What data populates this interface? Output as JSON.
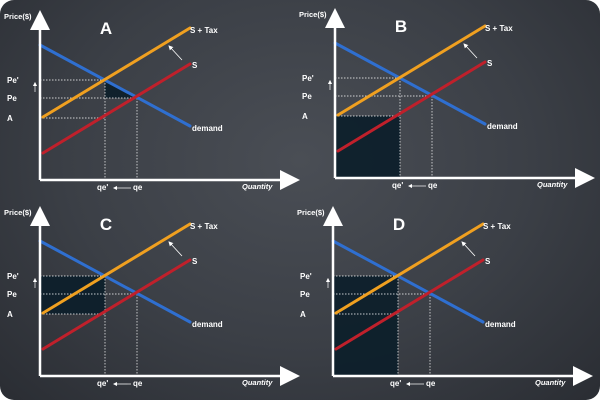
{
  "colors": {
    "supply": "#c0202b",
    "supply_tax": "#f0a020",
    "demand": "#2f6fd0",
    "shade": "#0c1e2a",
    "axis": "#ffffff"
  },
  "labels": {
    "price_axis": "Price($)",
    "quantity_axis": "Quantity",
    "supply": "S",
    "supply_tax": "S + Tax",
    "demand": "demand",
    "pe_prime": "Pe'",
    "pe": "Pe",
    "a": "A",
    "qe_prime": "qe'",
    "qe": "qe"
  },
  "panels": [
    {
      "title": "A",
      "shaded_region": "consumer-tax-triangle"
    },
    {
      "title": "B",
      "shaded_region": "rectangle-A-to-origin"
    },
    {
      "title": "C",
      "shaded_region": "rectangle-Pe-prime-to-A"
    },
    {
      "title": "D",
      "shaded_region": "rectangle-Pe-prime-to-origin"
    }
  ]
}
